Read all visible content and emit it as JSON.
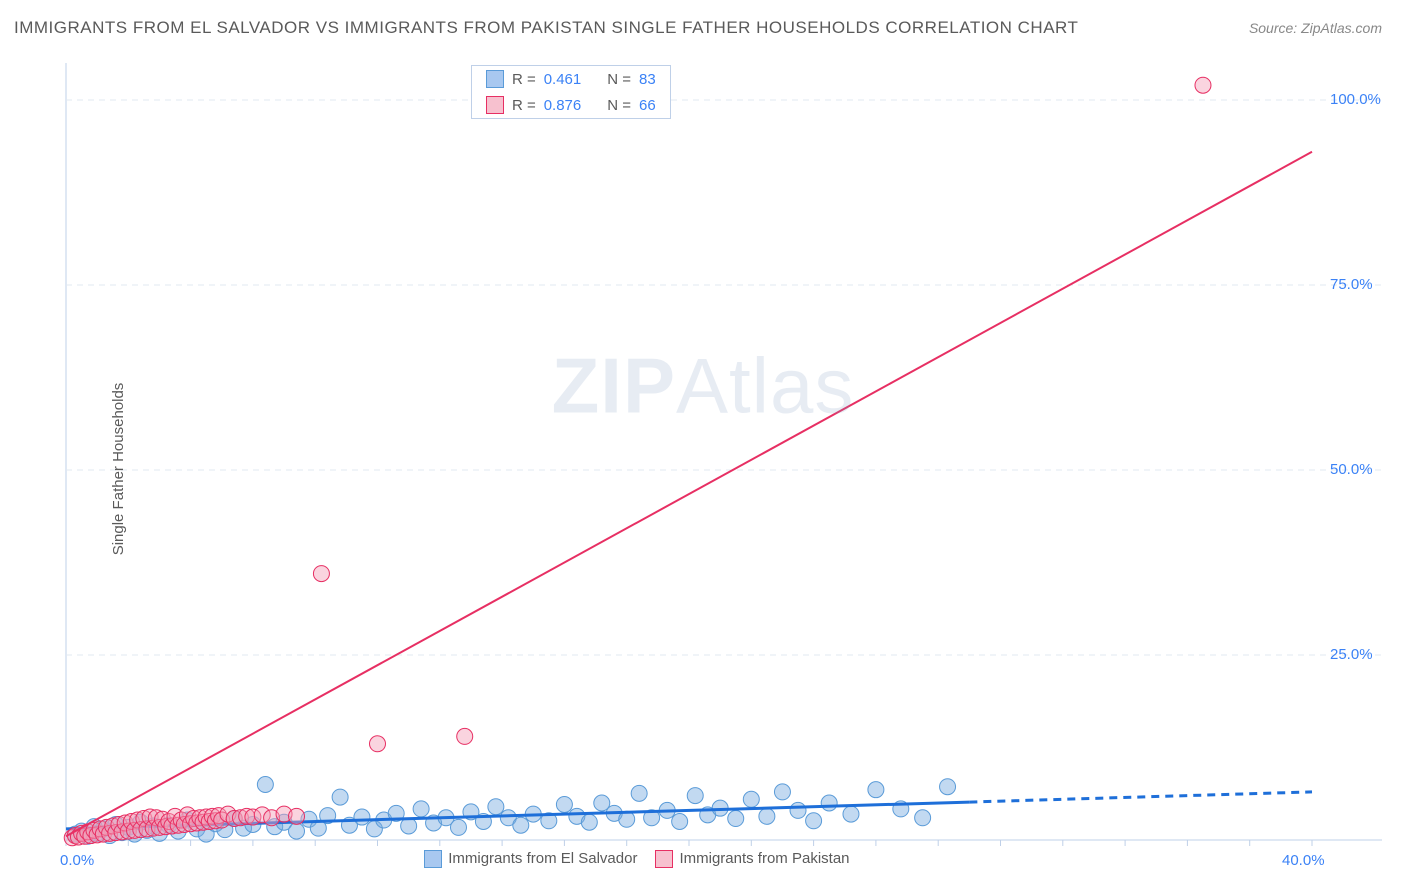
{
  "title": "IMMIGRANTS FROM EL SALVADOR VS IMMIGRANTS FROM PAKISTAN SINGLE FATHER HOUSEHOLDS CORRELATION CHART",
  "title_fontsize": 17,
  "source": "Source: ZipAtlas.com",
  "source_fontsize": 14,
  "y_axis_label": "Single Father Households",
  "watermark_zip": "ZIP",
  "watermark_atlas": "Atlas",
  "chart": {
    "type": "scatter",
    "background_color": "#ffffff",
    "plot_border_color": "#bfd0e8",
    "grid_color": "#e1e8f2",
    "grid_dash": "6 5",
    "xlim": [
      0,
      40
    ],
    "ylim": [
      0,
      105
    ],
    "x_ticks": [
      0,
      40
    ],
    "x_tick_labels": [
      "0.0%",
      "40.0%"
    ],
    "y_ticks": [
      25,
      50,
      75,
      100
    ],
    "y_tick_labels": [
      "25.0%",
      "50.0%",
      "75.0%",
      "100.0%"
    ],
    "minor_x_step": 2,
    "tick_label_color": "#3b82f6",
    "tick_label_fontsize": 15
  },
  "legend_top": {
    "r_label": "R =",
    "n_label": "N =",
    "rows": [
      {
        "r": "0.461",
        "n": "83",
        "swatch_fill": "#a8c8f0",
        "swatch_border": "#5a9bd8"
      },
      {
        "r": "0.876",
        "n": "66",
        "swatch_fill": "#f7c1cf",
        "swatch_border": "#e72f63"
      }
    ]
  },
  "legend_bottom": {
    "items": [
      {
        "label": "Immigrants from El Salvador",
        "swatch_fill": "#a8c8f0",
        "swatch_border": "#5a9bd8"
      },
      {
        "label": "Immigrants from Pakistan",
        "swatch_fill": "#f7c1cf",
        "swatch_border": "#e72f63"
      }
    ]
  },
  "series": [
    {
      "name": "el_salvador",
      "marker_fill": "rgba(120,170,225,0.45)",
      "marker_stroke": "#5a9bd8",
      "marker_radius": 8,
      "trend_color": "#1e6fd9",
      "trend_width": 3,
      "trend_solid_xmax": 29,
      "trend": {
        "x1": 0,
        "y1": 1.5,
        "x2": 40,
        "y2": 6.5
      },
      "points": [
        [
          0.3,
          0.8
        ],
        [
          0.5,
          1.2
        ],
        [
          0.7,
          0.5
        ],
        [
          0.9,
          1.8
        ],
        [
          1.0,
          0.9
        ],
        [
          1.2,
          1.5
        ],
        [
          1.4,
          0.6
        ],
        [
          1.6,
          2.1
        ],
        [
          1.8,
          1.0
        ],
        [
          2.0,
          1.7
        ],
        [
          2.2,
          0.8
        ],
        [
          2.4,
          2.4
        ],
        [
          2.6,
          1.3
        ],
        [
          2.8,
          1.9
        ],
        [
          3.0,
          0.9
        ],
        [
          3.3,
          2.0
        ],
        [
          3.6,
          1.2
        ],
        [
          3.9,
          2.7
        ],
        [
          4.2,
          1.5
        ],
        [
          4.5,
          0.8
        ],
        [
          4.8,
          2.2
        ],
        [
          5.1,
          1.4
        ],
        [
          5.4,
          2.9
        ],
        [
          5.7,
          1.6
        ],
        [
          6.0,
          2.1
        ],
        [
          6.4,
          7.5
        ],
        [
          6.7,
          1.8
        ],
        [
          7.0,
          2.4
        ],
        [
          7.4,
          1.2
        ],
        [
          7.8,
          2.8
        ],
        [
          8.1,
          1.6
        ],
        [
          8.4,
          3.3
        ],
        [
          8.8,
          5.8
        ],
        [
          9.1,
          2.0
        ],
        [
          9.5,
          3.1
        ],
        [
          9.9,
          1.5
        ],
        [
          10.2,
          2.7
        ],
        [
          10.6,
          3.6
        ],
        [
          11.0,
          1.9
        ],
        [
          11.4,
          4.2
        ],
        [
          11.8,
          2.3
        ],
        [
          12.2,
          3.0
        ],
        [
          12.6,
          1.7
        ],
        [
          13.0,
          3.8
        ],
        [
          13.4,
          2.5
        ],
        [
          13.8,
          4.5
        ],
        [
          14.2,
          3.0
        ],
        [
          14.6,
          2.0
        ],
        [
          15.0,
          3.5
        ],
        [
          15.5,
          2.6
        ],
        [
          16.0,
          4.8
        ],
        [
          16.4,
          3.2
        ],
        [
          16.8,
          2.4
        ],
        [
          17.2,
          5.0
        ],
        [
          17.6,
          3.6
        ],
        [
          18.0,
          2.8
        ],
        [
          18.4,
          6.3
        ],
        [
          18.8,
          3.0
        ],
        [
          19.3,
          4.0
        ],
        [
          19.7,
          2.5
        ],
        [
          20.2,
          6.0
        ],
        [
          20.6,
          3.4
        ],
        [
          21.0,
          4.3
        ],
        [
          21.5,
          2.9
        ],
        [
          22.0,
          5.5
        ],
        [
          22.5,
          3.2
        ],
        [
          23.0,
          6.5
        ],
        [
          23.5,
          4.0
        ],
        [
          24.0,
          2.6
        ],
        [
          24.5,
          5.0
        ],
        [
          25.2,
          3.5
        ],
        [
          26.0,
          6.8
        ],
        [
          26.8,
          4.2
        ],
        [
          27.5,
          3.0
        ],
        [
          28.3,
          7.2
        ]
      ]
    },
    {
      "name": "pakistan",
      "marker_fill": "rgba(245,160,185,0.45)",
      "marker_stroke": "#e72f63",
      "marker_radius": 8,
      "trend_color": "#e72f63",
      "trend_width": 2,
      "trend_solid_xmax": 40,
      "trend": {
        "x1": 0,
        "y1": 0.5,
        "x2": 40,
        "y2": 93
      },
      "points": [
        [
          0.2,
          0.3
        ],
        [
          0.3,
          0.6
        ],
        [
          0.4,
          0.4
        ],
        [
          0.5,
          0.9
        ],
        [
          0.6,
          0.5
        ],
        [
          0.7,
          1.1
        ],
        [
          0.8,
          0.6
        ],
        [
          0.9,
          1.3
        ],
        [
          1.0,
          0.7
        ],
        [
          1.1,
          1.5
        ],
        [
          1.2,
          0.8
        ],
        [
          1.3,
          1.7
        ],
        [
          1.4,
          0.9
        ],
        [
          1.5,
          1.9
        ],
        [
          1.6,
          1.0
        ],
        [
          1.7,
          2.1
        ],
        [
          1.8,
          1.1
        ],
        [
          1.9,
          2.3
        ],
        [
          2.0,
          1.2
        ],
        [
          2.1,
          2.5
        ],
        [
          2.2,
          1.3
        ],
        [
          2.3,
          2.7
        ],
        [
          2.4,
          1.4
        ],
        [
          2.5,
          2.9
        ],
        [
          2.6,
          1.5
        ],
        [
          2.7,
          3.1
        ],
        [
          2.8,
          1.6
        ],
        [
          2.9,
          3.0
        ],
        [
          3.0,
          1.7
        ],
        [
          3.1,
          2.8
        ],
        [
          3.2,
          1.8
        ],
        [
          3.3,
          2.5
        ],
        [
          3.4,
          1.9
        ],
        [
          3.5,
          3.2
        ],
        [
          3.6,
          2.0
        ],
        [
          3.7,
          2.7
        ],
        [
          3.8,
          2.1
        ],
        [
          3.9,
          3.4
        ],
        [
          4.0,
          2.2
        ],
        [
          4.1,
          2.9
        ],
        [
          4.2,
          2.3
        ],
        [
          4.3,
          3.0
        ],
        [
          4.4,
          2.4
        ],
        [
          4.5,
          3.1
        ],
        [
          4.6,
          2.5
        ],
        [
          4.7,
          3.2
        ],
        [
          4.8,
          2.6
        ],
        [
          4.9,
          3.3
        ],
        [
          5.0,
          2.7
        ],
        [
          5.2,
          3.5
        ],
        [
          5.4,
          2.9
        ],
        [
          5.6,
          3.0
        ],
        [
          5.8,
          3.2
        ],
        [
          6.0,
          3.1
        ],
        [
          6.3,
          3.4
        ],
        [
          6.6,
          3.0
        ],
        [
          7.0,
          3.5
        ],
        [
          7.4,
          3.2
        ],
        [
          8.2,
          36.0
        ],
        [
          10.0,
          13.0
        ],
        [
          12.8,
          14.0
        ],
        [
          36.5,
          102.0
        ]
      ]
    }
  ]
}
